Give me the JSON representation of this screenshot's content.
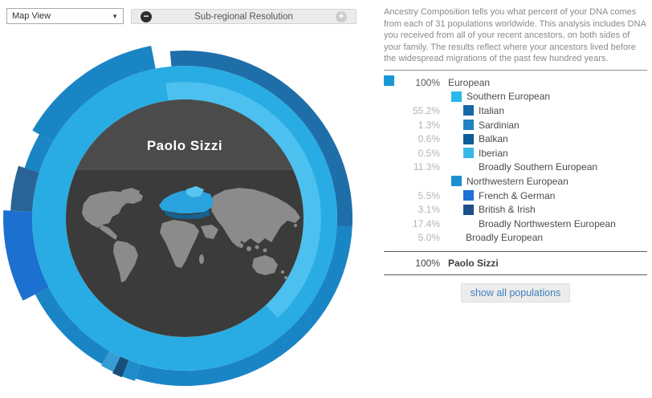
{
  "toolbar": {
    "view_select": {
      "value": "Map View",
      "caret": "▼"
    },
    "resolution": {
      "label": "Sub-regional Resolution",
      "minus_glyph": "−",
      "plus_glyph": "+"
    }
  },
  "intro_text": "Ancestry Composition tells you what percent of your DNA comes from each of 31 populations worldwide. This analysis includes DNA you received from all of your recent ancestors, on both sides of your family. The results reflect where your ancestors lived before the widespread migrations of the past few hundred years.",
  "wheel": {
    "center_label": "Paolo Sizzi"
  },
  "legend": {
    "rows": [
      {
        "pct": "100%",
        "label": "European",
        "swatch": "#1b97d5",
        "lead": true,
        "sw_ml": 0,
        "lab_ml": 10,
        "pct_dark": true
      },
      {
        "pct": "",
        "label": "Southern European",
        "swatch": "#29b9ea",
        "lead": false,
        "sw_ml": 14,
        "lab_ml": 6
      },
      {
        "pct": "55.2%",
        "label": "Italian",
        "swatch": "#1568a8",
        "lead": false,
        "sw_ml": 29,
        "lab_ml": 6
      },
      {
        "pct": "1.3%",
        "label": "Sardinian",
        "swatch": "#1f80c2",
        "lead": false,
        "sw_ml": 29,
        "lab_ml": 6
      },
      {
        "pct": "0.6%",
        "label": "Balkan",
        "swatch": "#0b5e97",
        "lead": false,
        "sw_ml": 29,
        "lab_ml": 6
      },
      {
        "pct": "0.5%",
        "label": "Iberian",
        "swatch": "#39b7e6",
        "lead": false,
        "sw_ml": 29,
        "lab_ml": 6
      },
      {
        "pct": "11.3%",
        "label": "Broadly Southern European",
        "swatch": null,
        "lead": false,
        "sw_ml": 0,
        "lab_ml": 48
      },
      {
        "pct": "",
        "label": "Northwestern European",
        "swatch": "#1d8fd0",
        "lead": false,
        "sw_ml": 14,
        "lab_ml": 6
      },
      {
        "pct": "5.5%",
        "label": "French & German",
        "swatch": "#1e6fd6",
        "lead": false,
        "sw_ml": 29,
        "lab_ml": 6
      },
      {
        "pct": "3.1%",
        "label": "British & Irish",
        "swatch": "#1b5089",
        "lead": false,
        "sw_ml": 29,
        "lab_ml": 6
      },
      {
        "pct": "17.4%",
        "label": "Broadly Northwestern European",
        "swatch": null,
        "lead": false,
        "sw_ml": 0,
        "lab_ml": 48
      },
      {
        "pct": "5.0%",
        "label": "Broadly European",
        "swatch": null,
        "lead": false,
        "sw_ml": 0,
        "lab_ml": 32
      }
    ],
    "total": {
      "pct": "100%",
      "label": "Paolo Sizzi"
    },
    "show_all_button": "show all populations"
  },
  "chart_data": {
    "type": "pie",
    "title": "Ancestry Composition wheel",
    "person": "Paolo Sizzi",
    "legend_position": "right",
    "populations": [
      {
        "label": "European",
        "pct": 100,
        "color": "#1b97d5",
        "children": [
          {
            "label": "Southern European",
            "color": "#29b9ea",
            "children": [
              {
                "label": "Italian",
                "pct": 55.2,
                "color": "#1568a8"
              },
              {
                "label": "Sardinian",
                "pct": 1.3,
                "color": "#1f80c2"
              },
              {
                "label": "Balkan",
                "pct": 0.6,
                "color": "#0b5e97"
              },
              {
                "label": "Iberian",
                "pct": 0.5,
                "color": "#39b7e6"
              },
              {
                "label": "Broadly Southern European",
                "pct": 11.3
              }
            ]
          },
          {
            "label": "Northwestern European",
            "color": "#1d8fd0",
            "children": [
              {
                "label": "French & German",
                "pct": 5.5,
                "color": "#1e6fd6"
              },
              {
                "label": "British & Irish",
                "pct": 3.1,
                "color": "#1b5089"
              },
              {
                "label": "Broadly Northwestern European",
                "pct": 17.4
              }
            ]
          },
          {
            "label": "Broadly European",
            "pct": 5.0
          }
        ]
      }
    ],
    "total": {
      "label": "Paolo Sizzi",
      "pct": 100
    }
  }
}
